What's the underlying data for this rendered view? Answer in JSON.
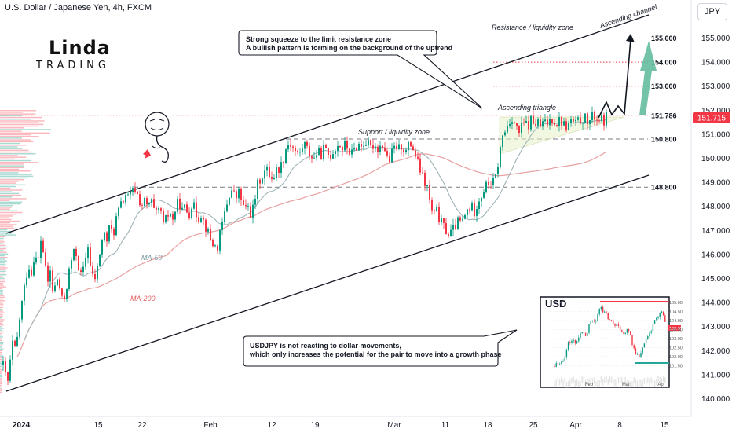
{
  "header": {
    "title": "U.S. Dollar / Japanese Yen, 4h, FXCM",
    "currency_button": "JPY"
  },
  "branding": {
    "name": "Linda",
    "sub": "TRADING"
  },
  "callouts": {
    "top_line1": "Strong squeeze to the limit resistance zone",
    "top_line2": "A bullish pattern is forming on the background of the uptrend",
    "bottom_line1": "USDJPY is not reacting to dollar movements,",
    "bottom_line2": "which only increases the potential for the pair to move into a growth phase"
  },
  "colors": {
    "up": "#089981",
    "down": "#f23645",
    "channel": "#131722",
    "ma50": "#9fb3b8",
    "ma200": "#e8a0a0",
    "target_arrow": "#26a69a",
    "price_badge": "#f23645"
  },
  "chart_data": {
    "type": "candlestick",
    "symbol": "USDJPY",
    "timeframe": "4h",
    "current_price": 151.715,
    "ylim": [
      140.0,
      155.5
    ],
    "y_ticks": [
      140.0,
      141.0,
      142.0,
      143.0,
      144.0,
      145.0,
      146.0,
      147.0,
      148.0,
      149.0,
      150.0,
      151.0,
      152.0,
      153.0,
      154.0,
      155.0
    ],
    "x_ticks": [
      "2024",
      "15",
      "22",
      "Feb",
      "12",
      "19",
      "Mar",
      "11",
      "18",
      "25",
      "Apr",
      "8",
      "15"
    ],
    "levels": [
      {
        "price": 148.8,
        "label": "148.800",
        "style": "dashed"
      },
      {
        "price": 150.8,
        "label": "150.800",
        "style": "dashed"
      },
      {
        "price": 151.786,
        "label": "151.786",
        "style": "dotted"
      },
      {
        "price": 153.0,
        "label": "153.000",
        "style": "dotted"
      },
      {
        "price": 154.0,
        "label": "154.000",
        "style": "dotted"
      },
      {
        "price": 155.0,
        "label": "155.000",
        "style": "dotted"
      }
    ],
    "annotations": [
      "Resistance / liquidity zone",
      "Support / liquidity zone",
      "Ascending triangle",
      "Ascending channel",
      "MA-50",
      "MA-200"
    ],
    "price_path": [
      [
        0,
        141.4
      ],
      [
        3,
        141.0
      ],
      [
        6,
        140.7
      ],
      [
        9,
        141.5
      ],
      [
        12,
        142.3
      ],
      [
        16,
        141.9
      ],
      [
        20,
        143.1
      ],
      [
        24,
        144.0
      ],
      [
        28,
        144.8
      ],
      [
        32,
        145.6
      ],
      [
        36,
        145.2
      ],
      [
        40,
        146.1
      ],
      [
        44,
        145.5
      ],
      [
        48,
        146.6
      ],
      [
        52,
        146.0
      ],
      [
        56,
        144.7
      ],
      [
        60,
        145.3
      ],
      [
        64,
        144.2
      ],
      [
        68,
        145.1
      ],
      [
        72,
        144.6
      ],
      [
        76,
        143.9
      ],
      [
        80,
        144.5
      ],
      [
        84,
        145.3
      ],
      [
        88,
        145.9
      ],
      [
        92,
        146.2
      ],
      [
        96,
        145.5
      ],
      [
        100,
        145.0
      ],
      [
        104,
        145.7
      ],
      [
        108,
        146.4
      ],
      [
        112,
        145.2
      ],
      [
        116,
        144.9
      ],
      [
        120,
        145.4
      ],
      [
        124,
        146.3
      ],
      [
        128,
        146.9
      ],
      [
        132,
        146.6
      ],
      [
        136,
        147.2
      ],
      [
        140,
        146.8
      ],
      [
        144,
        147.5
      ],
      [
        148,
        147.9
      ],
      [
        152,
        148.2
      ],
      [
        156,
        148.5
      ],
      [
        160,
        148.3
      ],
      [
        164,
        148.6
      ],
      [
        168,
        148.7
      ],
      [
        172,
        148.4
      ],
      [
        176,
        148.0
      ],
      [
        180,
        148.2
      ],
      [
        184,
        147.9
      ],
      [
        188,
        148.3
      ],
      [
        192,
        147.8
      ],
      [
        196,
        147.6
      ],
      [
        200,
        148.0
      ],
      [
        204,
        147.2
      ],
      [
        208,
        147.5
      ],
      [
        212,
        147.8
      ],
      [
        216,
        147.4
      ],
      [
        220,
        148.0
      ],
      [
        224,
        148.2
      ],
      [
        228,
        147.8
      ],
      [
        232,
        148.0
      ],
      [
        236,
        147.6
      ],
      [
        240,
        148.1
      ],
      [
        244,
        147.9
      ],
      [
        248,
        147.5
      ],
      [
        252,
        147.7
      ],
      [
        256,
        147.3
      ],
      [
        260,
        147.0
      ],
      [
        264,
        146.6
      ],
      [
        268,
        146.4
      ],
      [
        272,
        146.2
      ],
      [
        276,
        146.8
      ],
      [
        280,
        147.4
      ],
      [
        284,
        148.0
      ],
      [
        288,
        148.5
      ],
      [
        292,
        148.7
      ],
      [
        296,
        148.3
      ],
      [
        300,
        148.6
      ],
      [
        304,
        148.2
      ],
      [
        308,
        147.8
      ],
      [
        312,
        148.0
      ],
      [
        316,
        147.6
      ],
      [
        320,
        148.2
      ],
      [
        324,
        148.9
      ],
      [
        328,
        149.2
      ],
      [
        332,
        149.4
      ],
      [
        336,
        149.5
      ],
      [
        340,
        149.3
      ],
      [
        344,
        149.2
      ],
      [
        348,
        149.5
      ],
      [
        352,
        149.6
      ],
      [
        356,
        149.9
      ],
      [
        360,
        150.4
      ],
      [
        364,
        150.7
      ],
      [
        368,
        150.5
      ],
      [
        372,
        150.3
      ],
      [
        376,
        150.1
      ],
      [
        380,
        150.4
      ],
      [
        384,
        150.6
      ],
      [
        388,
        150.3
      ],
      [
        392,
        150.1
      ],
      [
        396,
        150.0
      ],
      [
        400,
        150.3
      ],
      [
        404,
        150.1
      ],
      [
        408,
        150.4
      ],
      [
        412,
        150.2
      ],
      [
        416,
        150.1
      ],
      [
        420,
        150.3
      ],
      [
        424,
        150.5
      ],
      [
        428,
        150.6
      ],
      [
        432,
        150.4
      ],
      [
        436,
        150.6
      ],
      [
        440,
        150.3
      ],
      [
        444,
        150.2
      ],
      [
        448,
        150.4
      ],
      [
        452,
        150.6
      ],
      [
        456,
        150.5
      ],
      [
        460,
        150.7
      ],
      [
        464,
        150.6
      ],
      [
        468,
        150.4
      ],
      [
        472,
        150.6
      ],
      [
        476,
        150.4
      ],
      [
        480,
        150.5
      ],
      [
        484,
        150.6
      ],
      [
        488,
        150.1
      ],
      [
        492,
        149.9
      ],
      [
        496,
        150.3
      ],
      [
        500,
        150.5
      ],
      [
        504,
        150.4
      ],
      [
        508,
        150.6
      ],
      [
        512,
        150.2
      ],
      [
        516,
        150.5
      ],
      [
        520,
        150.6
      ],
      [
        524,
        150.2
      ],
      [
        528,
        149.8
      ],
      [
        532,
        149.4
      ],
      [
        536,
        149.0
      ],
      [
        540,
        148.8
      ],
      [
        544,
        148.0
      ],
      [
        548,
        147.6
      ],
      [
        552,
        147.8
      ],
      [
        556,
        147.4
      ],
      [
        560,
        147.2
      ],
      [
        564,
        147.0
      ],
      [
        568,
        146.8
      ],
      [
        572,
        147.0
      ],
      [
        576,
        147.2
      ],
      [
        580,
        147.4
      ],
      [
        584,
        147.3
      ],
      [
        588,
        147.6
      ],
      [
        592,
        147.9
      ],
      [
        596,
        148.0
      ],
      [
        600,
        147.8
      ],
      [
        604,
        148.2
      ],
      [
        608,
        148.4
      ],
      [
        612,
        148.7
      ],
      [
        616,
        148.9
      ],
      [
        620,
        149.0
      ],
      [
        624,
        149.0
      ],
      [
        628,
        149.3
      ],
      [
        632,
        150.2
      ],
      [
        636,
        150.9
      ],
      [
        640,
        151.2
      ],
      [
        644,
        151.5
      ],
      [
        648,
        151.7
      ],
      [
        652,
        151.4
      ],
      [
        656,
        151.0
      ],
      [
        660,
        151.3
      ],
      [
        664,
        151.5
      ],
      [
        668,
        151.3
      ],
      [
        672,
        151.6
      ],
      [
        676,
        151.4
      ],
      [
        680,
        151.5
      ],
      [
        684,
        151.3
      ],
      [
        688,
        151.5
      ],
      [
        692,
        151.4
      ],
      [
        696,
        151.6
      ],
      [
        700,
        151.7
      ],
      [
        704,
        151.4
      ],
      [
        708,
        151.6
      ],
      [
        712,
        151.5
      ],
      [
        716,
        151.3
      ],
      [
        720,
        151.4
      ],
      [
        724,
        151.6
      ],
      [
        728,
        151.4
      ],
      [
        732,
        151.5
      ],
      [
        736,
        151.6
      ],
      [
        740,
        151.7
      ],
      [
        744,
        151.5
      ],
      [
        748,
        151.6
      ],
      [
        752,
        151.8
      ],
      [
        756,
        151.6
      ],
      [
        760,
        151.7
      ],
      [
        764,
        151.5
      ],
      [
        768,
        151.715
      ]
    ]
  },
  "inset": {
    "title": "USD",
    "x_ticks": [
      "Feb",
      "Mar",
      "Apr"
    ],
    "y_ticks": [
      "105.00",
      "104.50",
      "104.00",
      "103.50",
      "103.00",
      "102.50",
      "102.00",
      "101.50"
    ],
    "price_tag": "103.83"
  }
}
